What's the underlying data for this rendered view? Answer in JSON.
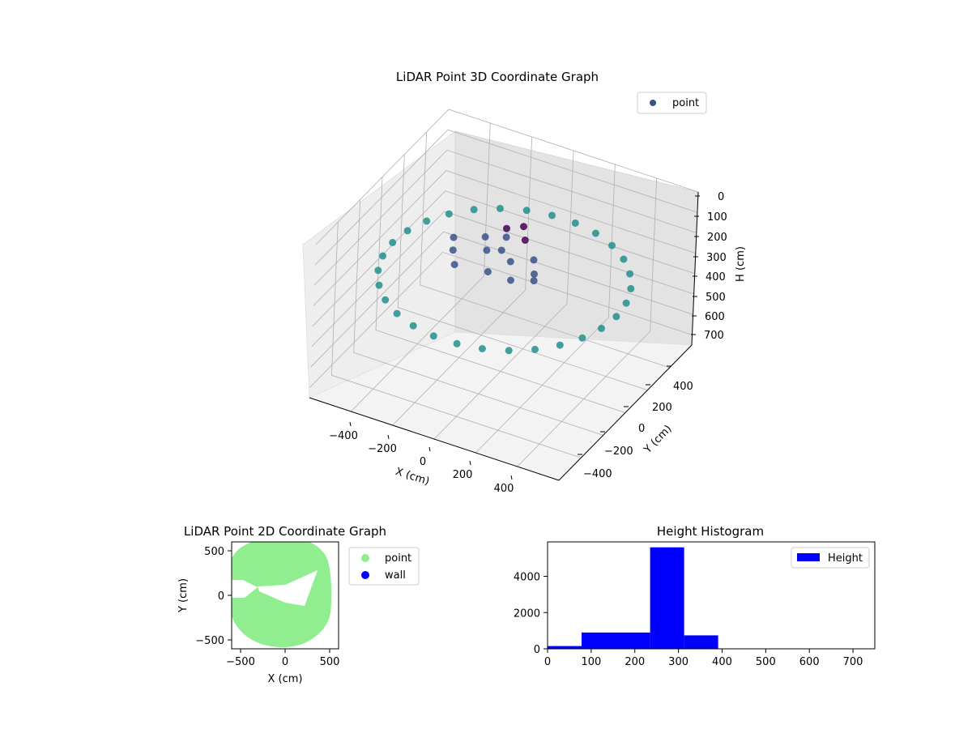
{
  "chart_data": [
    {
      "type": "scatter",
      "title": "LiDAR Point 3D Coordinate Graph",
      "xlabel": "X (cm)",
      "ylabel": "Y (cm)",
      "zlabel": "H (cm)",
      "xlim": [
        -600,
        600
      ],
      "ylim": [
        -600,
        600
      ],
      "zlim": [
        0,
        750
      ],
      "z_inverted": true,
      "xticks": [
        "−400",
        "−200",
        "0",
        "200",
        "400"
      ],
      "yticks": [
        "−400",
        "−200",
        "0",
        "200",
        "400"
      ],
      "zticks": [
        "0",
        "100",
        "200",
        "300",
        "400",
        "500",
        "600",
        "700"
      ],
      "legend": {
        "labels": [
          "point"
        ],
        "placement": "top-right"
      },
      "colormap": [
        "#440154",
        "#3b528b",
        "#21918c"
      ],
      "grid": true,
      "series": [
        {
          "name": "point",
          "color": "#3b528b",
          "points": [
            [
              538,
              0,
              300
            ],
            [
              526,
              112,
              300
            ],
            [
              491,
              219,
              300
            ],
            [
              435,
              316,
              300
            ],
            [
              360,
              400,
              300
            ],
            [
              269,
              466,
              300
            ],
            [
              166,
              512,
              300
            ],
            [
              56,
              535,
              300
            ],
            [
              -56,
              535,
              300
            ],
            [
              -166,
              512,
              300
            ],
            [
              -269,
              466,
              300
            ],
            [
              -360,
              400,
              300
            ],
            [
              -435,
              316,
              300
            ],
            [
              -491,
              219,
              300
            ],
            [
              -526,
              112,
              300
            ],
            [
              -538,
              0,
              300
            ],
            [
              -526,
              -112,
              300
            ],
            [
              -491,
              -219,
              300
            ],
            [
              -435,
              -316,
              300
            ],
            [
              -360,
              -400,
              300
            ],
            [
              -269,
              -466,
              300
            ],
            [
              -166,
              -512,
              300
            ],
            [
              -56,
              -535,
              300
            ],
            [
              56,
              -535,
              300
            ],
            [
              166,
              -512,
              300
            ],
            [
              269,
              -466,
              300
            ],
            [
              360,
              -400,
              300
            ],
            [
              435,
              -316,
              300
            ],
            [
              491,
              -219,
              300
            ],
            [
              526,
              -112,
              300
            ],
            [
              -300,
              100,
              250
            ],
            [
              -250,
              0,
              240
            ],
            [
              -200,
              -80,
              250
            ],
            [
              -120,
              60,
              230
            ],
            [
              -60,
              -40,
              260
            ],
            [
              0,
              50,
              240
            ],
            [
              60,
              -60,
              250
            ],
            [
              120,
              40,
              255
            ],
            [
              -180,
              160,
              240
            ],
            [
              -80,
              120,
              250
            ],
            [
              0,
              0,
              50
            ],
            [
              60,
              60,
              120
            ],
            [
              120,
              30,
              180
            ],
            [
              160,
              -40,
              230
            ],
            [
              -40,
              80,
              150
            ],
            [
              20,
              120,
              100
            ]
          ]
        }
      ]
    },
    {
      "type": "scatter",
      "title": "LiDAR Point 2D Coordinate Graph",
      "xlabel": "X (cm)",
      "ylabel": "Y (cm)",
      "xlim": [
        -600,
        600
      ],
      "ylim": [
        -600,
        600
      ],
      "xticks": [
        "−500",
        "0",
        "500"
      ],
      "yticks": [
        "−500",
        "0",
        "500"
      ],
      "legend": {
        "labels": [
          "point",
          "wall"
        ],
        "placement": "outside-right"
      },
      "grid": false,
      "series": [
        {
          "name": "point",
          "color": "#90ee90",
          "shape": "dense-disc",
          "radius": 560,
          "center": [
            -60,
            0
          ]
        },
        {
          "name": "wall",
          "color": "#0000ff",
          "points": []
        }
      ]
    },
    {
      "type": "bar",
      "title": "Height Histogram",
      "xlim": [
        0,
        750
      ],
      "ylim": [
        0,
        5900
      ],
      "xticks": [
        "0",
        "100",
        "200",
        "300",
        "400",
        "500",
        "600",
        "700"
      ],
      "yticks": [
        "0",
        "2000",
        "4000"
      ],
      "legend": {
        "labels": [
          "Height"
        ],
        "placement": "top-right"
      },
      "grid": false,
      "series": [
        {
          "name": "Height",
          "color": "#0000ff",
          "bins": [
            {
              "x0": 0,
              "x1": 78,
              "value": 150
            },
            {
              "x0": 78,
              "x1": 235,
              "value": 900
            },
            {
              "x0": 235,
              "x1": 313,
              "value": 5600
            },
            {
              "x0": 313,
              "x1": 391,
              "value": 740
            },
            {
              "x0": 391,
              "x1": 750,
              "value": 0
            }
          ]
        }
      ]
    }
  ]
}
